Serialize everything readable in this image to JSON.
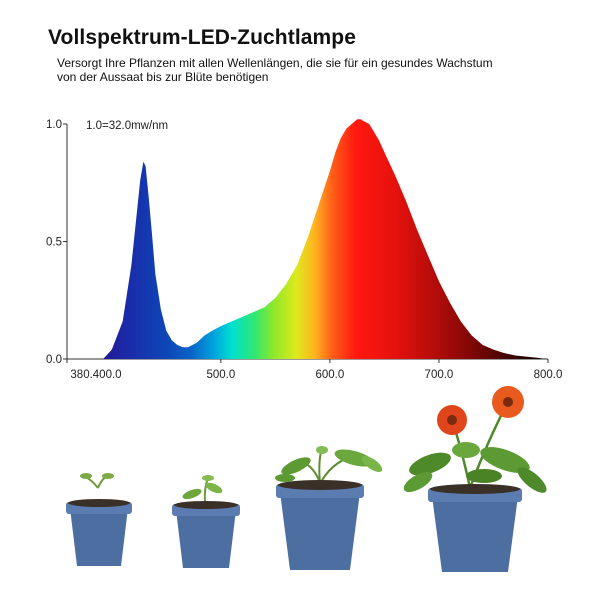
{
  "header": {
    "title": "Vollspektrum-LED-Zuchtlampe",
    "subtitle": "Versorgt Ihre Pflanzen mit allen Wellenlängen, die sie für ein gesundes Wachstum von der Aussaat bis zur Blüte benötigen"
  },
  "chart_data": {
    "type": "area",
    "title": "",
    "xlabel": "",
    "ylabel": "",
    "annotation": "1.0=32.0mw/nm",
    "xlim": [
      380,
      800
    ],
    "ylim": [
      0,
      1.0
    ],
    "x_tick_labels": [
      {
        "value": 380,
        "label": "380.400.0"
      },
      {
        "value": 500,
        "label": "500.0"
      },
      {
        "value": 600,
        "label": "600.0"
      },
      {
        "value": 700,
        "label": "700.0"
      },
      {
        "value": 800,
        "label": "800.0"
      }
    ],
    "y_tick_labels": [
      {
        "value": 0.0,
        "label": "0.0"
      },
      {
        "value": 0.5,
        "label": "0.5"
      },
      {
        "value": 1.0,
        "label": "1.0"
      }
    ],
    "grid": false,
    "series": [
      {
        "x": [
          392,
          400,
          410,
          418,
          422,
          426,
          429,
          431,
          434,
          437,
          440,
          445,
          450,
          455,
          460,
          465,
          470,
          478,
          485,
          492,
          500,
          510,
          520,
          530,
          540,
          550,
          560,
          570,
          580,
          590,
          600,
          605,
          610,
          615,
          620,
          625,
          628,
          632,
          636,
          640,
          645,
          650,
          660,
          670,
          680,
          690,
          700,
          710,
          720,
          730,
          740,
          750,
          760,
          770,
          780,
          790,
          795,
          800
        ],
        "y": [
          0.0,
          0.04,
          0.16,
          0.4,
          0.58,
          0.76,
          0.84,
          0.82,
          0.68,
          0.52,
          0.36,
          0.21,
          0.12,
          0.08,
          0.06,
          0.05,
          0.05,
          0.07,
          0.1,
          0.12,
          0.14,
          0.16,
          0.18,
          0.2,
          0.22,
          0.26,
          0.32,
          0.4,
          0.52,
          0.66,
          0.8,
          0.88,
          0.94,
          0.98,
          1.0,
          1.02,
          1.02,
          1.01,
          1.0,
          0.97,
          0.93,
          0.88,
          0.78,
          0.67,
          0.55,
          0.44,
          0.33,
          0.24,
          0.16,
          0.1,
          0.06,
          0.04,
          0.025,
          0.015,
          0.01,
          0.005,
          0.002,
          0.0
        ]
      }
    ]
  },
  "plants": [
    {
      "stage": "seedling"
    },
    {
      "stage": "sprout"
    },
    {
      "stage": "young-plant"
    },
    {
      "stage": "flowering-plant"
    }
  ],
  "colors": {
    "pot": "#4d6ea0",
    "pot_dark": "#37557f",
    "leaf": "#4f8a2a",
    "flower": "#e0451c"
  }
}
